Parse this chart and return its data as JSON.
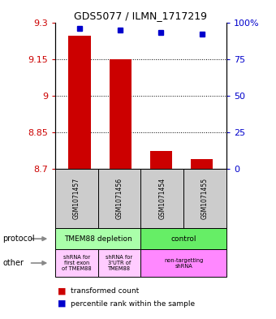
{
  "title": "GDS5077 / ILMN_1717219",
  "samples": [
    "GSM1071457",
    "GSM1071456",
    "GSM1071454",
    "GSM1071455"
  ],
  "red_values": [
    9.245,
    9.15,
    8.775,
    8.74
  ],
  "blue_values": [
    96,
    95,
    93,
    92
  ],
  "ylim_left": [
    8.7,
    9.3
  ],
  "ylim_right": [
    0,
    100
  ],
  "yticks_left": [
    8.7,
    8.85,
    9.0,
    9.15,
    9.3
  ],
  "yticks_right": [
    0,
    25,
    50,
    75,
    100
  ],
  "ytick_labels_left": [
    "8.7",
    "8.85",
    "9",
    "9.15",
    "9.3"
  ],
  "ytick_labels_right": [
    "0",
    "25",
    "50",
    "75",
    "100%"
  ],
  "left_color": "#cc0000",
  "right_color": "#0000cc",
  "bar_color": "#cc0000",
  "dot_color": "#0000cc",
  "protocol_labels": [
    "TMEM88 depletion",
    "control"
  ],
  "protocol_colors": [
    "#aaffaa",
    "#66ee66"
  ],
  "other_labels_left1": "shRNA for\nfirst exon\nof TMEM88",
  "other_labels_left2": "shRNA for\n3'UTR of\nTMEM88",
  "other_labels_right": "non-targetting\nshRNA",
  "other_color_left": "#ffccff",
  "other_color_right": "#ff88ff",
  "sample_bg_color": "#cccccc",
  "bar_width": 0.55,
  "dot_size": 5,
  "grid_color": "#000000",
  "grid_linestyle": ":",
  "grid_linewidth": 0.7
}
